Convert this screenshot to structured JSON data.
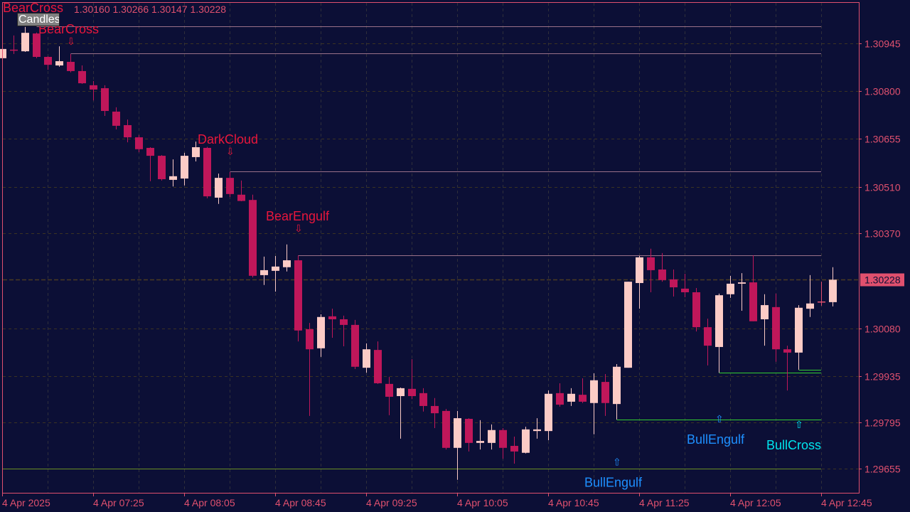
{
  "header": {
    "ohlc": "1.30160 1.30266 1.30147 1.30228",
    "indicator_label": "BearCross",
    "object_label": "Candles"
  },
  "colors": {
    "background": "#0c0f36",
    "bull": "#fccbc6",
    "bear": "#c0175a",
    "axis": "#e0506e",
    "bear_signal": "#e8163c",
    "bull_engulf_signal": "#1e90ff",
    "bull_cross_signal": "#00e5ee",
    "resistance_line": "#c0102a",
    "support_line": "#32cd32",
    "base_line": "#6b8e23"
  },
  "chart_data": {
    "type": "candlestick",
    "timeframe": "M5",
    "grid": true,
    "ylim": [
      1.296,
      1.3101
    ],
    "y_ticks": [
      "1.30945",
      "1.30800",
      "1.30655",
      "1.30510",
      "1.30370",
      "1.30080",
      "1.29935",
      "1.29795",
      "1.29655"
    ],
    "current_price": "1.30228",
    "x_ticks": [
      {
        "index": 0,
        "label": "4 Apr 2025"
      },
      {
        "index": 8,
        "label": "4 Apr 07:25"
      },
      {
        "index": 16,
        "label": "4 Apr 08:05"
      },
      {
        "index": 24,
        "label": "4 Apr 08:45"
      },
      {
        "index": 32,
        "label": "4 Apr 09:25"
      },
      {
        "index": 40,
        "label": "4 Apr 10:05"
      },
      {
        "index": 48,
        "label": "4 Apr 10:45"
      },
      {
        "index": 56,
        "label": "4 Apr 11:25"
      },
      {
        "index": 64,
        "label": "4 Apr 12:05"
      },
      {
        "index": 72,
        "label": "4 Apr 12:45"
      }
    ],
    "candles_columns": [
      "time",
      "open",
      "high",
      "low",
      "close"
    ],
    "candles": [
      [
        "06:45",
        1.309,
        1.30936,
        1.30898,
        1.30928
      ],
      [
        "06:50",
        1.30926,
        1.30969,
        1.30913,
        1.30926
      ],
      [
        "06:55",
        1.30921,
        1.30995,
        1.30919,
        1.30977
      ],
      [
        "07:00",
        1.30975,
        1.30978,
        1.309,
        1.30904
      ],
      [
        "07:05",
        1.30904,
        1.30906,
        1.30865,
        1.3088
      ],
      [
        "07:10",
        1.30878,
        1.30936,
        1.30874,
        1.30891
      ],
      [
        "07:15",
        1.30889,
        1.30913,
        1.30857,
        1.30861
      ],
      [
        "07:20",
        1.30861,
        1.30878,
        1.30822,
        1.30824
      ],
      [
        "07:25",
        1.30818,
        1.30831,
        1.30772,
        1.30805
      ],
      [
        "07:30",
        1.30809,
        1.30818,
        1.30725,
        1.3074
      ],
      [
        "07:35",
        1.30738,
        1.30751,
        1.30684,
        1.30695
      ],
      [
        "07:40",
        1.30697,
        1.30714,
        1.30645,
        1.3066
      ],
      [
        "07:45",
        1.3066,
        1.30667,
        1.30615,
        1.30624
      ],
      [
        "07:50",
        1.30628,
        1.3063,
        1.30527,
        1.30604
      ],
      [
        "07:55",
        1.30604,
        1.30606,
        1.30529,
        1.30533
      ],
      [
        "08:00",
        1.30531,
        1.30593,
        1.30511,
        1.30542
      ],
      [
        "08:05",
        1.30535,
        1.30613,
        1.30514,
        1.30604
      ],
      [
        "08:10",
        1.306,
        1.30647,
        1.30587,
        1.3063
      ],
      [
        "08:15",
        1.30628,
        1.30631,
        1.30475,
        1.30481
      ],
      [
        "08:20",
        1.30477,
        1.3055,
        1.30458,
        1.30537
      ],
      [
        "08:25",
        1.30537,
        1.30555,
        1.30479,
        1.30488
      ],
      [
        "08:30",
        1.30486,
        1.30529,
        1.30466,
        1.30467
      ],
      [
        "08:35",
        1.3047,
        1.30486,
        1.30235,
        1.3024
      ],
      [
        "08:40",
        1.30242,
        1.30298,
        1.30212,
        1.30257
      ],
      [
        "08:45",
        1.30255,
        1.303,
        1.30192,
        1.30268
      ],
      [
        "08:50",
        1.30266,
        1.30335,
        1.30253,
        1.30287
      ],
      [
        "08:55",
        1.30287,
        1.30302,
        1.30041,
        1.30074
      ],
      [
        "09:00",
        1.30078,
        1.30097,
        1.29815,
        1.30017
      ],
      [
        "09:05",
        1.3002,
        1.30123,
        1.29994,
        1.30115
      ],
      [
        "09:10",
        1.30117,
        1.3014,
        1.30052,
        1.30108
      ],
      [
        "09:15",
        1.30108,
        1.30119,
        1.30026,
        1.30091
      ],
      [
        "09:20",
        1.30091,
        1.30106,
        1.29957,
        1.29964
      ],
      [
        "09:25",
        1.29961,
        1.30035,
        1.29946,
        1.30017
      ],
      [
        "09:30",
        1.30015,
        1.30041,
        1.29912,
        1.29914
      ],
      [
        "09:35",
        1.29912,
        1.29933,
        1.29817,
        1.29873
      ],
      [
        "09:40",
        1.29875,
        1.29901,
        1.29746,
        1.29899
      ],
      [
        "09:45",
        1.29897,
        1.29987,
        1.29866,
        1.29875
      ],
      [
        "09:50",
        1.29884,
        1.29899,
        1.29828,
        1.29845
      ],
      [
        "09:55",
        1.29845,
        1.29869,
        1.29778,
        1.29823
      ],
      [
        "10:00",
        1.2983,
        1.29836,
        1.29713,
        1.29718
      ],
      [
        "10:05",
        1.29718,
        1.2983,
        1.29621,
        1.29808
      ],
      [
        "10:10",
        1.29806,
        1.29808,
        1.29707,
        1.29733
      ],
      [
        "10:15",
        1.29733,
        1.29802,
        1.29713,
        1.29739
      ],
      [
        "10:20",
        1.29733,
        1.29789,
        1.29713,
        1.29772
      ],
      [
        "10:25",
        1.29772,
        1.29778,
        1.29685,
        1.29718
      ],
      [
        "10:30",
        1.29724,
        1.29752,
        1.2967,
        1.29707
      ],
      [
        "10:35",
        1.29703,
        1.29782,
        1.29701,
        1.29774
      ],
      [
        "10:40",
        1.29769,
        1.29808,
        1.29746,
        1.29774
      ],
      [
        "10:45",
        1.29769,
        1.29892,
        1.29741,
        1.29882
      ],
      [
        "10:50",
        1.29884,
        1.29914,
        1.29843,
        1.29849
      ],
      [
        "10:55",
        1.29858,
        1.29899,
        1.29845,
        1.29882
      ],
      [
        "11:00",
        1.29879,
        1.29929,
        1.29854,
        1.29858
      ],
      [
        "11:05",
        1.29854,
        1.29944,
        1.29759,
        1.29923
      ],
      [
        "11:10",
        1.29918,
        1.29942,
        1.29815,
        1.29854
      ],
      [
        "11:15",
        1.29851,
        1.29972,
        1.29804,
        1.29964
      ],
      [
        "11:20",
        1.29961,
        1.30222,
        1.29961,
        1.30222
      ],
      [
        "11:25",
        1.30218,
        1.303,
        1.3014,
        1.30296
      ],
      [
        "11:30",
        1.30296,
        1.30322,
        1.3019,
        1.30257
      ],
      [
        "11:35",
        1.30259,
        1.30309,
        1.30222,
        1.30227
      ],
      [
        "11:40",
        1.30229,
        1.30259,
        1.30177,
        1.30205
      ],
      [
        "11:45",
        1.30201,
        1.30246,
        1.30175,
        1.3019
      ],
      [
        "11:50",
        1.3019,
        1.30203,
        1.30071,
        1.30084
      ],
      [
        "11:55",
        1.30084,
        1.3011,
        1.29968,
        1.30028
      ],
      [
        "12:00",
        1.30024,
        1.30186,
        1.29946,
        1.30181
      ],
      [
        "12:05",
        1.30184,
        1.3024,
        1.30173,
        1.30216
      ],
      [
        "12:10",
        1.30216,
        1.30248,
        1.30134,
        1.3022
      ],
      [
        "12:15",
        1.3022,
        1.30302,
        1.30102,
        1.30102
      ],
      [
        "12:20",
        1.30108,
        1.30184,
        1.30028,
        1.30151
      ],
      [
        "12:25",
        1.30145,
        1.30186,
        1.29979,
        1.30017
      ],
      [
        "12:30",
        1.30017,
        1.30028,
        1.29892,
        1.30007
      ],
      [
        "12:35",
        1.30007,
        1.30151,
        1.29955,
        1.30143
      ],
      [
        "12:40",
        1.3014,
        1.30242,
        1.30115,
        1.30156
      ],
      [
        "12:45",
        1.30162,
        1.30222,
        1.30149,
        1.3016
      ],
      [
        "12:50",
        1.3016,
        1.30266,
        1.30147,
        1.30228
      ]
    ],
    "levels": [
      {
        "kind": "resistance",
        "price": 1.30997,
        "from_index": 3
      },
      {
        "kind": "resistance",
        "price": 1.30915,
        "from_index": 6
      },
      {
        "kind": "resistance",
        "price": 1.30557,
        "from_index": 20
      },
      {
        "kind": "resistance",
        "price": 1.30302,
        "from_index": 26
      },
      {
        "kind": "support",
        "price": 1.29804,
        "from_index": 54
      },
      {
        "kind": "support",
        "price": 1.29946,
        "from_index": 63
      },
      {
        "kind": "support",
        "price": 1.29955,
        "from_index": 70
      },
      {
        "kind": "base",
        "price": 1.29655,
        "from_index": 0
      }
    ],
    "signals": [
      {
        "label": "BearCross",
        "index": 6,
        "price": 1.30954,
        "dir": "down",
        "color": "#e8163c"
      },
      {
        "label": "DarkCloud",
        "index": 20,
        "price": 1.30619,
        "dir": "down",
        "color": "#e8163c"
      },
      {
        "label": "BearEngulf",
        "index": 26,
        "price": 1.30386,
        "dir": "down",
        "color": "#e8163c"
      },
      {
        "label": "BullEngulf",
        "index": 54,
        "price": 1.29678,
        "dir": "up",
        "color": "#1e90ff"
      },
      {
        "label": "BullEngulf",
        "index": 63,
        "price": 1.29808,
        "dir": "up",
        "color": "#1e90ff"
      },
      {
        "label": "BullCross",
        "index": 70,
        "price": 1.29791,
        "dir": "up",
        "color": "#00e5ee"
      }
    ]
  }
}
